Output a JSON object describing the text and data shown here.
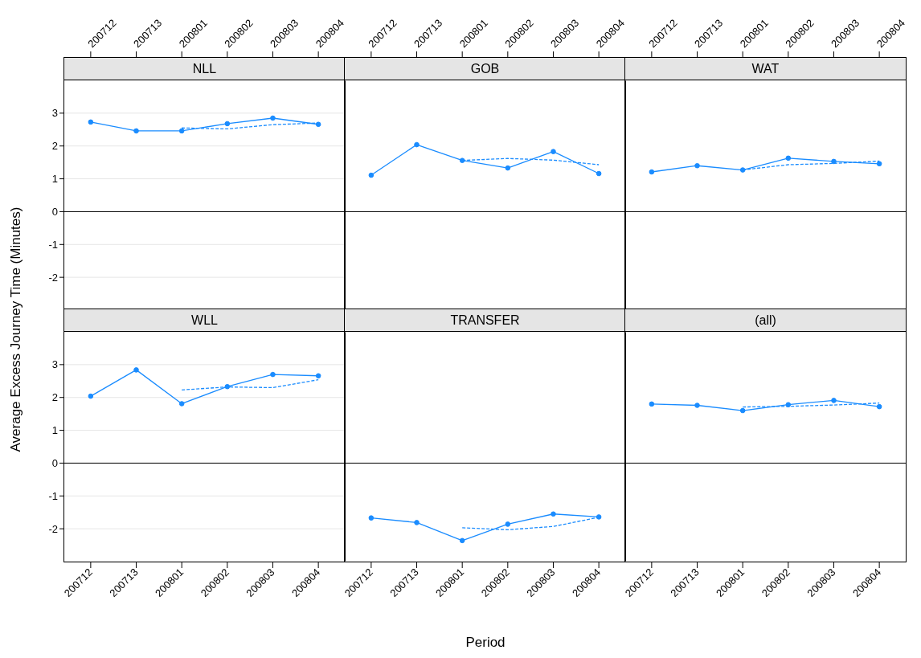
{
  "chart_data": [
    {
      "type": "line",
      "title": "NLL",
      "categories": [
        "200712",
        "200713",
        "200801",
        "200802",
        "200803",
        "200804"
      ],
      "ylim": [
        -3,
        4
      ],
      "yticks": [
        -2,
        -1,
        0,
        1,
        2,
        3
      ],
      "grid": "y",
      "ref_lines": [
        {
          "axis": "y",
          "value": 0,
          "color": "#000000"
        }
      ],
      "series": [
        {
          "color": "#1a8cff",
          "marker": "circle",
          "line_style": "solid",
          "values": [
            2.73,
            2.46,
            2.46,
            2.68,
            2.85,
            2.66
          ]
        },
        {
          "color": "#1a8cff",
          "marker": "none",
          "line_style": "dashed",
          "values": [
            null,
            null,
            2.55,
            2.52,
            2.65,
            2.7
          ]
        }
      ]
    },
    {
      "type": "line",
      "title": "GOB",
      "categories": [
        "200712",
        "200713",
        "200801",
        "200802",
        "200803",
        "200804"
      ],
      "ylim": [
        -3,
        4
      ],
      "yticks": [
        -2,
        -1,
        0,
        1,
        2,
        3
      ],
      "grid": "y",
      "tick_labels": "x",
      "ref_lines": [
        {
          "axis": "y",
          "value": 0,
          "color": "#000000"
        }
      ],
      "series": [
        {
          "color": "#1a8cff",
          "marker": "circle",
          "line_style": "solid",
          "values": [
            1.11,
            2.04,
            1.56,
            1.33,
            1.83,
            1.16
          ]
        },
        {
          "color": "#1a8cff",
          "marker": "none",
          "line_style": "dashed",
          "values": [
            null,
            null,
            1.56,
            1.62,
            1.57,
            1.43
          ]
        }
      ]
    },
    {
      "type": "line",
      "title": "WAT",
      "categories": [
        "200712",
        "200713",
        "200801",
        "200802",
        "200803",
        "200804"
      ],
      "ylim": [
        -3,
        4
      ],
      "yticks": [
        -2,
        -1,
        0,
        1,
        2,
        3
      ],
      "grid": "y",
      "tick_labels": "x",
      "ref_lines": [
        {
          "axis": "y",
          "value": 0,
          "color": "#000000"
        }
      ],
      "series": [
        {
          "color": "#1a8cff",
          "marker": "circle",
          "line_style": "solid",
          "values": [
            1.21,
            1.4,
            1.27,
            1.63,
            1.53,
            1.46
          ]
        },
        {
          "color": "#1a8cff",
          "marker": "none",
          "line_style": "dashed",
          "values": [
            null,
            null,
            1.27,
            1.43,
            1.47,
            1.54
          ]
        }
      ]
    },
    {
      "type": "line",
      "title": "WLL",
      "ylabel": "Average Excess Journey Time (Minutes)",
      "categories": [
        "200712",
        "200713",
        "200801",
        "200802",
        "200803",
        "200804"
      ],
      "ylim": [
        -3,
        4
      ],
      "yticks": [
        -2,
        -1,
        0,
        1,
        2,
        3
      ],
      "grid": "y",
      "ref_lines": [
        {
          "axis": "y",
          "value": 0,
          "color": "#000000"
        }
      ],
      "series": [
        {
          "color": "#1a8cff",
          "marker": "circle",
          "line_style": "solid",
          "values": [
            2.04,
            2.84,
            1.81,
            2.33,
            2.7,
            2.66
          ]
        },
        {
          "color": "#1a8cff",
          "marker": "none",
          "line_style": "dashed",
          "values": [
            null,
            null,
            2.23,
            2.32,
            2.3,
            2.54
          ]
        }
      ]
    },
    {
      "type": "line",
      "title": "TRANSFER",
      "xlabel": "Period",
      "categories": [
        "200712",
        "200713",
        "200801",
        "200802",
        "200803",
        "200804"
      ],
      "ylim": [
        -3,
        4
      ],
      "yticks": [
        -2,
        -1,
        0,
        1,
        2,
        3
      ],
      "grid": "y",
      "tick_labels": "x",
      "ref_lines": [
        {
          "axis": "y",
          "value": 0,
          "color": "#000000"
        }
      ],
      "series": [
        {
          "color": "#1a8cff",
          "marker": "circle",
          "line_style": "solid",
          "values": [
            -1.67,
            -1.81,
            -2.36,
            -1.86,
            -1.55,
            -1.64
          ]
        },
        {
          "color": "#1a8cff",
          "marker": "none",
          "line_style": "dashed",
          "values": [
            null,
            null,
            -1.97,
            -2.03,
            -1.93,
            -1.65
          ]
        }
      ]
    },
    {
      "type": "line",
      "title": "(all)",
      "categories": [
        "200712",
        "200713",
        "200801",
        "200802",
        "200803",
        "200804"
      ],
      "ylim": [
        -3,
        4
      ],
      "yticks": [
        -2,
        -1,
        0,
        1,
        2,
        3
      ],
      "grid": "y",
      "tick_labels": "x",
      "ref_lines": [
        {
          "axis": "y",
          "value": 0,
          "color": "#000000"
        }
      ],
      "series": [
        {
          "color": "#1a8cff",
          "marker": "circle",
          "line_style": "solid",
          "values": [
            1.8,
            1.76,
            1.6,
            1.78,
            1.91,
            1.72
          ]
        },
        {
          "color": "#1a8cff",
          "marker": "none",
          "line_style": "dashed",
          "values": [
            null,
            null,
            1.71,
            1.73,
            1.77,
            1.83
          ]
        }
      ]
    }
  ]
}
